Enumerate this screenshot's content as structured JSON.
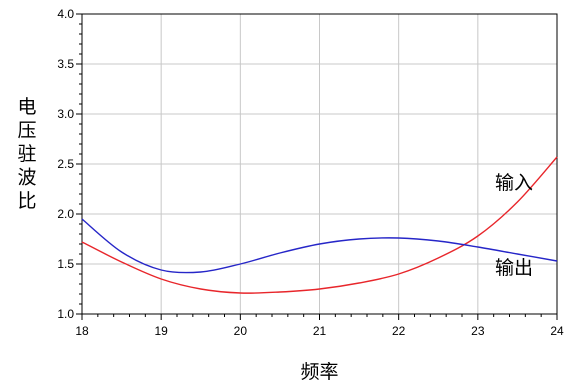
{
  "chart_data": {
    "type": "line",
    "xlabel": "频率",
    "ylabel": "电压驻波比",
    "xlim": [
      18,
      24
    ],
    "ylim": [
      1.0,
      4.0
    ],
    "x_ticks": [
      "18",
      "19",
      "20",
      "21",
      "22",
      "23",
      "24"
    ],
    "y_ticks": [
      "1.0",
      "1.5",
      "2.0",
      "2.5",
      "3.0",
      "3.5",
      "4.0"
    ],
    "grid": true,
    "series": [
      {
        "name": "输入",
        "color": "#e8262b",
        "x": [
          18.0,
          18.5,
          19.0,
          19.5,
          20.0,
          20.5,
          21.0,
          21.5,
          22.0,
          22.5,
          23.0,
          23.5,
          24.0
        ],
        "y": [
          1.72,
          1.52,
          1.35,
          1.25,
          1.21,
          1.22,
          1.25,
          1.31,
          1.4,
          1.56,
          1.78,
          2.12,
          2.57
        ]
      },
      {
        "name": "输出",
        "color": "#2626c8",
        "x": [
          18.0,
          18.5,
          19.0,
          19.5,
          20.0,
          20.5,
          21.0,
          21.5,
          22.0,
          22.5,
          23.0,
          23.5,
          24.0
        ],
        "y": [
          1.95,
          1.62,
          1.44,
          1.42,
          1.5,
          1.61,
          1.7,
          1.75,
          1.76,
          1.73,
          1.67,
          1.6,
          1.53
        ]
      }
    ]
  }
}
